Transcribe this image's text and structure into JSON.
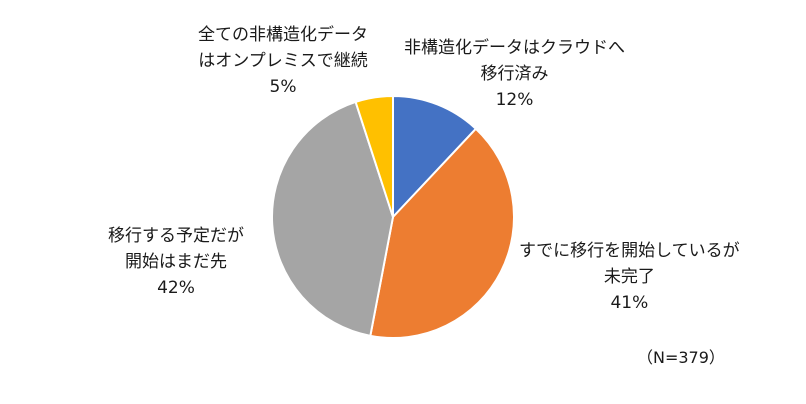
{
  "chart_data": {
    "type": "pie",
    "start_angle_deg": 0,
    "direction": "clockwise",
    "slices": [
      {
        "label_lines": [
          "非構造化データはクラウドへ",
          "移行済み"
        ],
        "value": 12,
        "value_label": "12%",
        "color": "#4472c4"
      },
      {
        "label_lines": [
          "すでに移行を開始しているが",
          "未完了"
        ],
        "value": 41,
        "value_label": "41%",
        "color": "#ed7d31"
      },
      {
        "label_lines": [
          "移行する予定だが",
          "開始はまだ先"
        ],
        "value": 42,
        "value_label": "42%",
        "color": "#a5a5a5"
      },
      {
        "label_lines": [
          "全ての非構造化データ",
          "はオンプレミスで継続"
        ],
        "value": 5,
        "value_label": "5%",
        "color": "#ffc000"
      }
    ],
    "note": "（N=379）"
  }
}
